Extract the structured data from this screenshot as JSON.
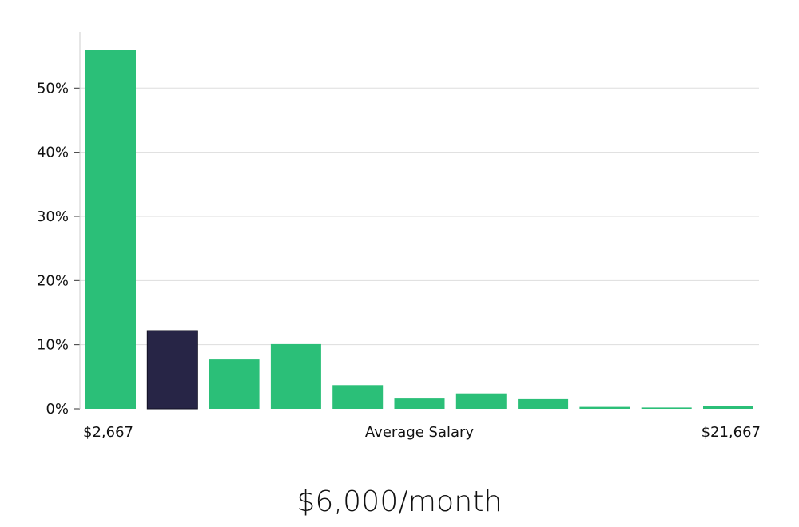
{
  "chart_data": {
    "type": "bar",
    "values": [
      56,
      12.2,
      7.7,
      10.1,
      3.7,
      1.6,
      2.4,
      1.5,
      0.3,
      0.2,
      0.4
    ],
    "highlight_index": 1,
    "ylim": [
      0,
      58.5
    ],
    "y_ticks": [
      0,
      10,
      20,
      30,
      40,
      50
    ],
    "y_tick_labels": [
      "0%",
      "10%",
      "20%",
      "30%",
      "40%",
      "50%"
    ],
    "x_labels": {
      "left": "$2,667",
      "center": "Average Salary",
      "right": "$21,667"
    },
    "grid": true,
    "colors": {
      "bar": "#2bbf78",
      "highlight": "#272546",
      "grid": "#dddddd",
      "axis": "#cccccc"
    }
  },
  "caption": "$6,000/month"
}
